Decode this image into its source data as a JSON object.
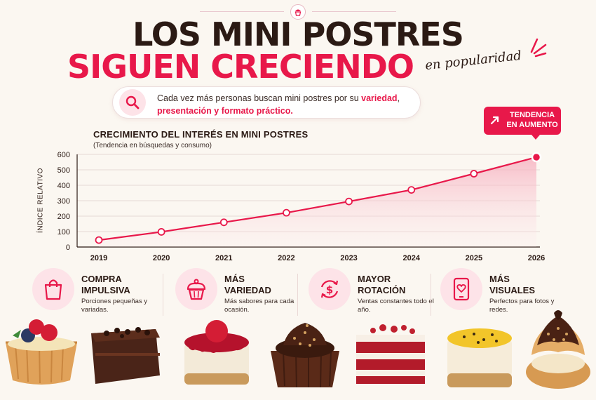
{
  "header": {
    "title_line1": "LOS MINI POSTRES",
    "title_line2": "SIGUEN CRECIENDO",
    "title_script": "en popularidad"
  },
  "subtitle": {
    "text_plain": "Cada vez más personas buscan mini postres por su ",
    "highlight1": "variedad",
    "sep": ", ",
    "highlight2": "presentación y formato práctico",
    "end": "."
  },
  "trend_badge": {
    "line1": "TENDENCIA",
    "line2": "EN AUMENTO"
  },
  "chart_data": {
    "type": "area",
    "title": "CRECIMIENTO DEL INTERÉS EN MINI POSTRES",
    "subtitle": "(Tendencia en búsquedas y consumo)",
    "xlabel": "",
    "ylabel": "ÍNDICE RELATIVO",
    "categories": [
      "2019",
      "2020",
      "2021",
      "2022",
      "2023",
      "2024",
      "2025",
      "2026"
    ],
    "values": [
      45,
      98,
      160,
      222,
      295,
      370,
      475,
      582
    ],
    "ylim": [
      0,
      600
    ],
    "yticks": [
      0,
      100,
      200,
      300,
      400,
      500,
      600
    ],
    "grid": true,
    "color": "#e8184a"
  },
  "features": [
    {
      "icon": "shopping-bag-icon",
      "title_line1": "COMPRA",
      "title_line2": "IMPULSIVA",
      "desc": "Porciones pequeñas y variadas."
    },
    {
      "icon": "cupcake-icon",
      "title_line1": "MÁS",
      "title_line2": "VARIEDAD",
      "desc": "Más sabores para cada ocasión."
    },
    {
      "icon": "dollar-cycle-icon",
      "title_line1": "MAYOR",
      "title_line2": "ROTACIÓN",
      "desc": "Ventas constantes todo el año."
    },
    {
      "icon": "phone-heart-icon",
      "title_line1": "MÁS",
      "title_line2": "VISUALES",
      "desc": "Perfectos para fotos y redes."
    }
  ],
  "colors": {
    "accent": "#e8184a",
    "dark": "#2b1a14",
    "background": "#fbf7f1",
    "soft_pink": "#fde3e8"
  }
}
